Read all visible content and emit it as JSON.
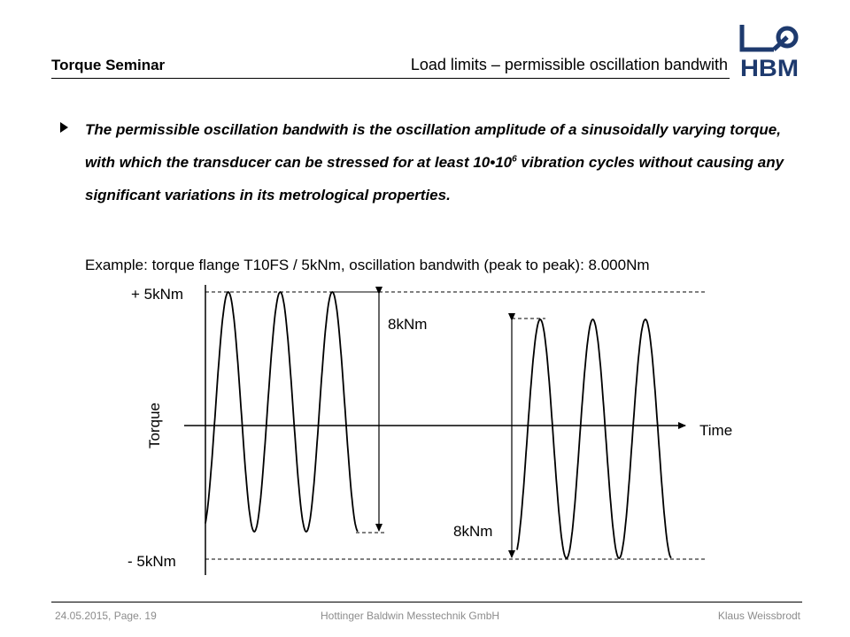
{
  "header": {
    "left_title": "Torque Seminar",
    "right_title": "Load limits – permissible oscillation bandwith",
    "logo_text": "HBM"
  },
  "body": {
    "paragraph_part1": "The permissible oscillation bandwith is the oscillation amplitude of a sinusoidally varying torque, with which the transducer can be stressed for at least 10•10",
    "paragraph_exponent": "6",
    "paragraph_part2": " vibration cycles without causing any significant variations in its metrological properties.",
    "example": "Example: torque flange T10FS / 5kNm, oscillation bandwith (peak to peak): 8.000Nm"
  },
  "diagram": {
    "label_top": "+ 5kNm",
    "label_bottom": "- 5kNm",
    "axis_y": "Torque",
    "axis_x": "Time",
    "range_label_left": "8kNm",
    "range_label_right": "8kNm"
  },
  "footer": {
    "date_page": "24.05.2015, Page. 19",
    "company": "Hottinger Baldwin Messtechnik GmbH",
    "author": "Klaus Weissbrodt"
  }
}
